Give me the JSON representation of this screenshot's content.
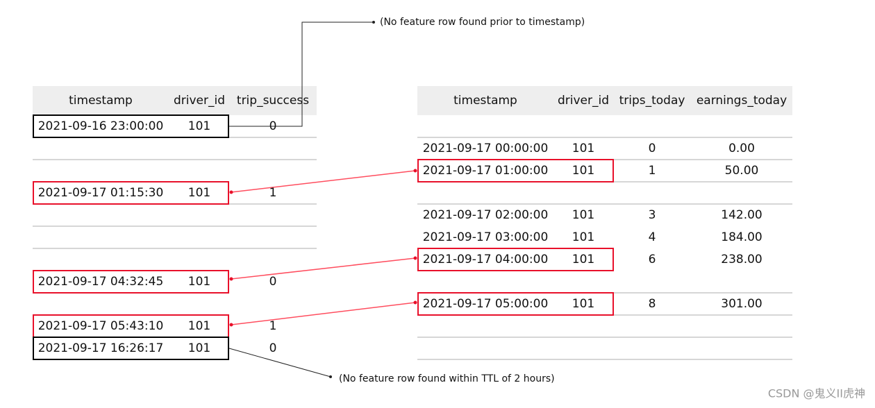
{
  "left_table": {
    "columns": [
      "timestamp",
      "driver_id",
      "trip_success"
    ],
    "rows": [
      [
        "2021-09-16 23:00:00",
        "101",
        "0"
      ],
      [
        "2021-09-17 01:15:30",
        "101",
        "1"
      ],
      [
        "2021-09-17 04:32:45",
        "101",
        "0"
      ],
      [
        "2021-09-17 05:43:10",
        "101",
        "1"
      ],
      [
        "2021-09-17 16:26:17",
        "101",
        "0"
      ]
    ]
  },
  "right_table": {
    "columns": [
      "timestamp",
      "driver_id",
      "trips_today",
      "earnings_today"
    ],
    "rows": [
      [
        "2021-09-17 00:00:00",
        "101",
        "0",
        "0.00"
      ],
      [
        "2021-09-17 01:00:00",
        "101",
        "1",
        "50.00"
      ],
      [
        "2021-09-17 02:00:00",
        "101",
        "3",
        "142.00"
      ],
      [
        "2021-09-17 03:00:00",
        "101",
        "4",
        "184.00"
      ],
      [
        "2021-09-17 04:00:00",
        "101",
        "6",
        "238.00"
      ],
      [
        "2021-09-17 05:00:00",
        "101",
        "8",
        "301.00"
      ]
    ]
  },
  "annotations": [
    "(No feature row found prior to timestamp)",
    "(No feature row found within TTL of 2 hours)"
  ],
  "watermark": "CSDN @鬼义II虎神"
}
